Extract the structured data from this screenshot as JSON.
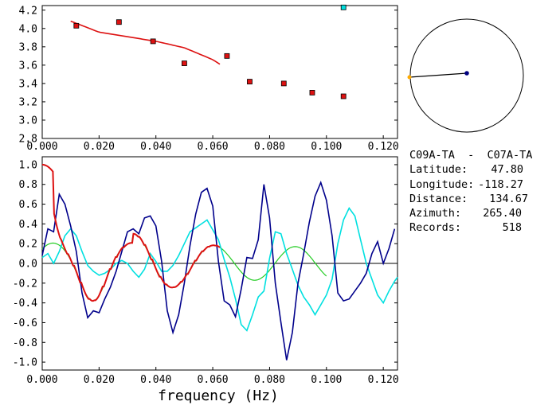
{
  "chart_data": [
    {
      "type": "scatter",
      "x_ticks": [
        "0.000",
        "0.020",
        "0.040",
        "0.060",
        "0.080",
        "0.100",
        "0.120"
      ],
      "y_ticks": [
        "2.8",
        "3.0",
        "3.2",
        "3.4",
        "3.6",
        "3.8",
        "4.0",
        "4.2"
      ],
      "xlim": [
        0.0,
        0.125
      ],
      "ylim": [
        2.8,
        4.25
      ],
      "points": [
        {
          "x": 0.012,
          "y": 4.03
        },
        {
          "x": 0.027,
          "y": 4.07
        },
        {
          "x": 0.039,
          "y": 3.86
        },
        {
          "x": 0.05,
          "y": 3.62
        },
        {
          "x": 0.065,
          "y": 3.7
        },
        {
          "x": 0.073,
          "y": 3.42
        },
        {
          "x": 0.085,
          "y": 3.4
        },
        {
          "x": 0.095,
          "y": 3.3
        },
        {
          "x": 0.106,
          "y": 3.26
        }
      ],
      "outlier": {
        "x": 0.106,
        "y": 4.23
      },
      "curve": {
        "x": [
          0.01,
          0.02,
          0.03,
          0.04,
          0.05,
          0.06,
          0.0625
        ],
        "y": [
          4.08,
          3.96,
          3.91,
          3.86,
          3.79,
          3.66,
          3.61
        ]
      },
      "colors": {
        "points": "#dd1111",
        "outlier": "#00dddd",
        "curve": "#dd1111"
      }
    },
    {
      "type": "line",
      "x_ticks": [
        "0.000",
        "0.020",
        "0.040",
        "0.060",
        "0.080",
        "0.100",
        "0.120"
      ],
      "y_ticks": [
        "-1.0",
        "-0.8",
        "-0.6",
        "-0.4",
        "-0.2",
        "0.0",
        "0.2",
        "0.4",
        "0.6",
        "0.8",
        "1.0"
      ],
      "xlabel": "frequency (Hz)",
      "xlim": [
        0.0,
        0.125
      ],
      "ylim": [
        -1.08,
        1.08
      ],
      "series": [
        {
          "color": "#00008b",
          "x": [
            0.0,
            0.002,
            0.004,
            0.006,
            0.008,
            0.01,
            0.012,
            0.014,
            0.016,
            0.018,
            0.02,
            0.022,
            0.024,
            0.026,
            0.028,
            0.03,
            0.032,
            0.034,
            0.036,
            0.038,
            0.04,
            0.042,
            0.044,
            0.046,
            0.048,
            0.05,
            0.052,
            0.054,
            0.056,
            0.058,
            0.06,
            0.062,
            0.064,
            0.066,
            0.068,
            0.07,
            0.072,
            0.074,
            0.076,
            0.078,
            0.08,
            0.082,
            0.084,
            0.086,
            0.088,
            0.09,
            0.092,
            0.094,
            0.096,
            0.098,
            0.1,
            0.102,
            0.104,
            0.106,
            0.108,
            0.11,
            0.112,
            0.114,
            0.116,
            0.118,
            0.12,
            0.122,
            0.124
          ],
          "y": [
            0.08,
            0.35,
            0.32,
            0.7,
            0.6,
            0.38,
            0.12,
            -0.3,
            -0.55,
            -0.48,
            -0.5,
            -0.36,
            -0.24,
            -0.08,
            0.12,
            0.32,
            0.35,
            0.3,
            0.46,
            0.48,
            0.38,
            0.02,
            -0.48,
            -0.7,
            -0.52,
            -0.2,
            0.18,
            0.5,
            0.72,
            0.76,
            0.58,
            0.02,
            -0.38,
            -0.42,
            -0.54,
            -0.26,
            0.06,
            0.05,
            0.24,
            0.8,
            0.46,
            -0.2,
            -0.6,
            -0.98,
            -0.7,
            -0.2,
            0.1,
            0.42,
            0.68,
            0.82,
            0.64,
            0.28,
            -0.3,
            -0.38,
            -0.36,
            -0.28,
            -0.2,
            -0.1,
            0.1,
            0.22,
            0.0,
            0.15,
            0.35
          ]
        },
        {
          "color": "#00e0e0",
          "x": [
            0.0,
            0.002,
            0.004,
            0.006,
            0.008,
            0.01,
            0.012,
            0.014,
            0.016,
            0.018,
            0.02,
            0.022,
            0.024,
            0.026,
            0.028,
            0.03,
            0.032,
            0.034,
            0.036,
            0.038,
            0.04,
            0.042,
            0.044,
            0.046,
            0.048,
            0.05,
            0.052,
            0.054,
            0.056,
            0.058,
            0.06,
            0.062,
            0.064,
            0.066,
            0.068,
            0.07,
            0.072,
            0.074,
            0.076,
            0.078,
            0.08,
            0.082,
            0.084,
            0.086,
            0.088,
            0.09,
            0.092,
            0.094,
            0.096,
            0.098,
            0.1,
            0.102,
            0.104,
            0.106,
            0.108,
            0.11,
            0.112,
            0.114,
            0.116,
            0.118,
            0.12,
            0.122,
            0.124,
            0.125
          ],
          "y": [
            0.06,
            0.1,
            0.0,
            0.12,
            0.28,
            0.35,
            0.28,
            0.12,
            -0.02,
            -0.08,
            -0.12,
            -0.1,
            -0.06,
            0.0,
            0.03,
            0.0,
            -0.08,
            -0.14,
            -0.06,
            0.1,
            0.02,
            -0.08,
            -0.08,
            -0.02,
            0.08,
            0.2,
            0.32,
            0.36,
            0.4,
            0.44,
            0.34,
            0.24,
            0.04,
            -0.14,
            -0.36,
            -0.62,
            -0.68,
            -0.52,
            -0.34,
            -0.28,
            0.05,
            0.32,
            0.3,
            0.1,
            -0.06,
            -0.22,
            -0.34,
            -0.42,
            -0.52,
            -0.42,
            -0.32,
            -0.16,
            0.2,
            0.44,
            0.56,
            0.48,
            0.24,
            0.0,
            -0.16,
            -0.32,
            -0.4,
            -0.28,
            -0.18,
            -0.14
          ]
        },
        {
          "color": "#22cc22",
          "formula": "0.3*cos(2*pi*x/0.0398)*exp(-(x-0.032)^2/0.00020)+0.17*cos(2*pi*x/0.0398)*(1-exp(-(x-0.032)^2/0.00020))",
          "x_range": [
            0.0,
            0.1
          ]
        },
        {
          "color": "#dd1111",
          "x_range": [
            0.0,
            0.0625
          ]
        }
      ]
    }
  ],
  "map": {
    "circle_label": "",
    "station_dot_color": "#ffaa00",
    "center_dot_color": "#000080"
  },
  "info": {
    "pair": "C09A-TA  -  C07A-TA",
    "rows": [
      {
        "label": "Latitude:",
        "value": "47.80"
      },
      {
        "label": "Longitude:",
        "value": "-118.27"
      },
      {
        "label": "Distance:",
        "value": "134.67"
      },
      {
        "label": "Azimuth:",
        "value": "265.40"
      },
      {
        "label": "Records:",
        "value": "518"
      }
    ]
  }
}
